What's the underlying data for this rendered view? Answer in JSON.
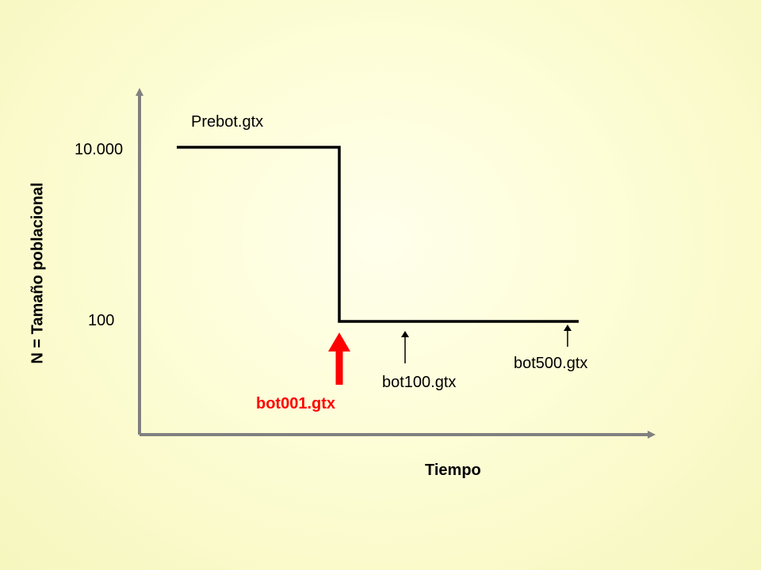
{
  "y_axis": {
    "label": "N = Tamaño poblacional",
    "ticks": [
      "10.000",
      "100"
    ]
  },
  "x_axis": {
    "label": "Tiempo"
  },
  "stages": {
    "prebot": "Prebot.gtx",
    "bot001": "bot001.gtx",
    "bot100": "bot100.gtx",
    "bot500": "bot500.gtx"
  },
  "colors": {
    "axis": "#808080",
    "line": "#000000",
    "highlight": "#ff0000"
  }
}
